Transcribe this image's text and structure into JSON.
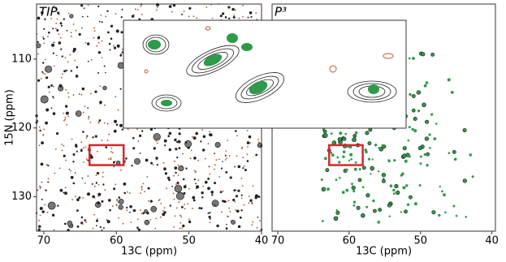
{
  "chart_data": [
    {
      "type": "scatter",
      "title": "TIP",
      "xlabel": "13C (ppm)",
      "ylabel": "15N (ppm)",
      "xlim": [
        71,
        40
      ],
      "xticks": [
        70,
        60,
        50,
        40
      ],
      "ylim": [
        135,
        102
      ],
      "yticks": [
        110,
        120,
        130
      ],
      "highlight": {
        "x": [
          63.7,
          59
        ],
        "y": [
          122.5,
          125.4
        ],
        "color": "#d62728"
      },
      "colors": [
        "#222222",
        "#b5501e"
      ]
    },
    {
      "type": "scatter",
      "title": "P³",
      "xlabel": "13C (ppm)",
      "xlim": [
        70.8,
        39.5
      ],
      "xticks": [
        70,
        60,
        50,
        40
      ],
      "ylim": [
        135,
        102
      ],
      "highlight": {
        "x": [
          62.8,
          58.1
        ],
        "y": [
          122.5,
          125.4
        ],
        "color": "#d62728"
      },
      "colors": [
        "#2e9a4a"
      ]
    }
  ]
}
